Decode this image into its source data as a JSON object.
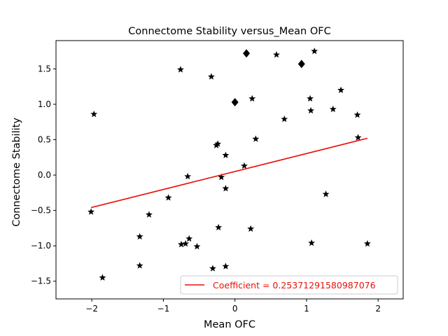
{
  "chart_data": {
    "type": "scatter",
    "title": "Connectome Stability versus_Mean OFC",
    "xlabel": "Mean OFC",
    "ylabel": "Connectome Stability",
    "xlim": [
      -2.5,
      2.35
    ],
    "ylim": [
      -1.75,
      1.9
    ],
    "xticks": [
      -2,
      -1,
      0,
      1,
      2
    ],
    "yticks": [
      -1.5,
      -1.0,
      -0.5,
      0.0,
      0.5,
      1.0,
      1.5
    ],
    "xtick_labels": [
      "−2",
      "−1",
      "0",
      "1",
      "2"
    ],
    "ytick_labels": [
      "−1.5",
      "−1.0",
      "−0.5",
      "0.0",
      "0.5",
      "1.0",
      "1.5"
    ],
    "grid": false,
    "legend_position": "lower-right",
    "colors": {
      "points": "#000000",
      "fit_line": "#e8120c"
    },
    "series": [
      {
        "marker": "star",
        "points": [
          [
            -1.97,
            0.86
          ],
          [
            -2.01,
            -0.52
          ],
          [
            -1.85,
            -1.45
          ],
          [
            -1.33,
            -0.87
          ],
          [
            -1.33,
            -1.28
          ],
          [
            -1.2,
            -0.56
          ],
          [
            -0.93,
            -0.32
          ],
          [
            -0.76,
            1.49
          ],
          [
            -0.75,
            -0.98
          ],
          [
            -0.69,
            -0.97
          ],
          [
            -0.66,
            -0.02
          ],
          [
            -0.64,
            -0.9
          ],
          [
            -0.53,
            -1.01
          ],
          [
            -0.33,
            1.39
          ],
          [
            -0.31,
            -1.32
          ],
          [
            -0.26,
            0.42
          ],
          [
            -0.24,
            0.44
          ],
          [
            -0.23,
            -0.74
          ],
          [
            -0.19,
            -0.03
          ],
          [
            -0.13,
            0.28
          ],
          [
            -0.13,
            -0.19
          ],
          [
            -0.13,
            -1.29
          ],
          [
            0.13,
            0.13
          ],
          [
            0.22,
            -0.76
          ],
          [
            0.24,
            1.08
          ],
          [
            0.29,
            0.51
          ],
          [
            0.58,
            1.7
          ],
          [
            0.69,
            0.79
          ],
          [
            1.05,
            1.08
          ],
          [
            1.06,
            0.91
          ],
          [
            1.07,
            -0.96
          ],
          [
            1.11,
            1.75
          ],
          [
            1.27,
            -0.27
          ],
          [
            1.37,
            0.93
          ],
          [
            1.48,
            1.2
          ],
          [
            1.71,
            0.85
          ],
          [
            1.72,
            0.53
          ],
          [
            1.85,
            -0.97
          ]
        ]
      },
      {
        "marker": "diamond",
        "points": [
          [
            0.16,
            1.72
          ],
          [
            0.93,
            1.57
          ],
          [
            0.0,
            1.03
          ]
        ]
      }
    ],
    "fit_line": {
      "label": "Coefficient = 0.25371291580987076",
      "x": [
        -2.01,
        1.85
      ],
      "y": [
        -0.46,
        0.52
      ]
    }
  }
}
